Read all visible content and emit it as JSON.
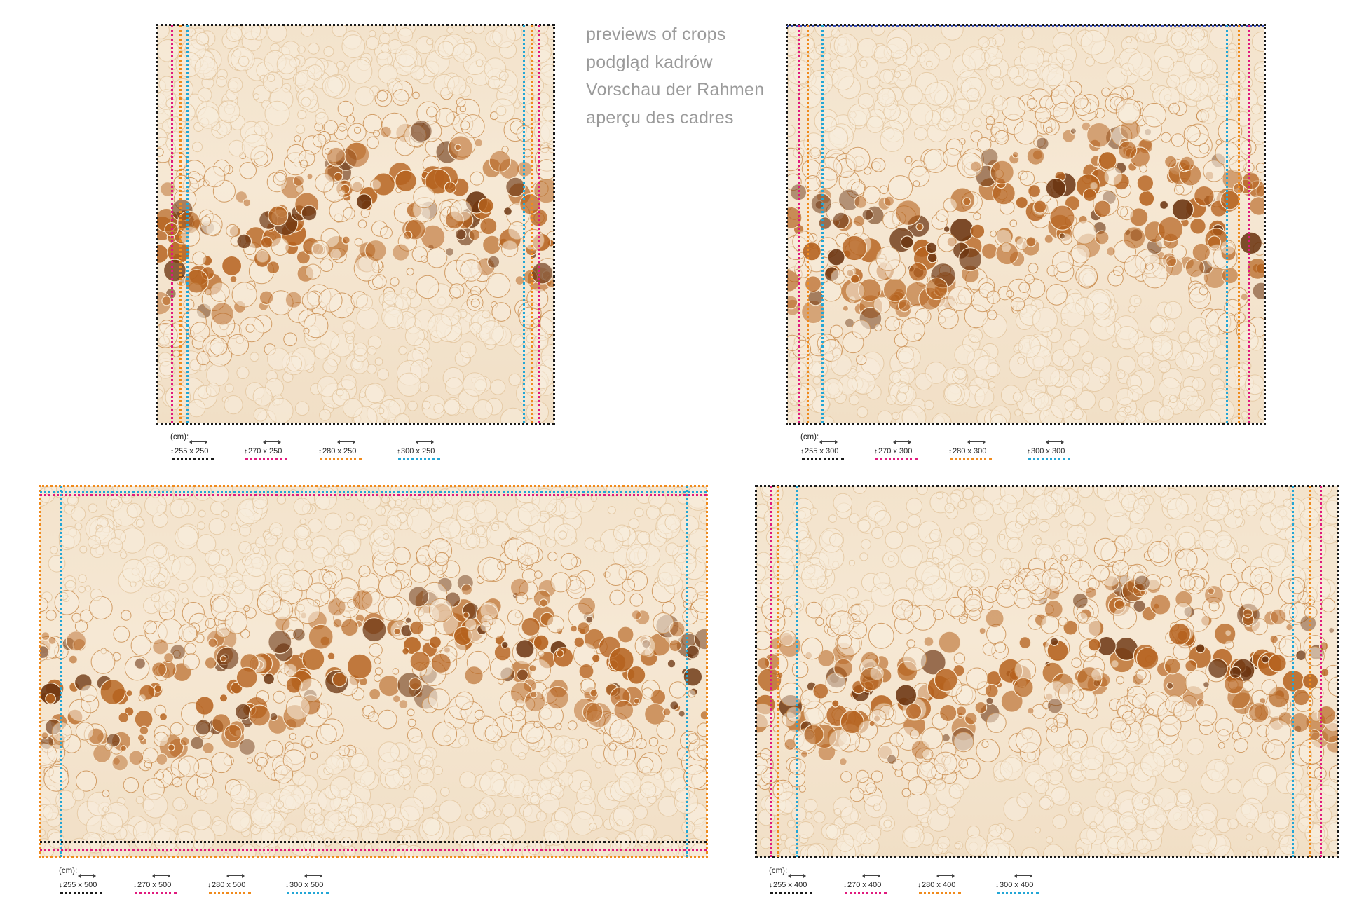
{
  "heading": {
    "lines": [
      "previews of crops",
      "podgląd kadrów",
      "Vorschau der Rahmen",
      "aperçu des cadres"
    ]
  },
  "colors": {
    "black": "#1a1a1a",
    "magenta": "#e0197d",
    "orange": "#f08a1c",
    "cyan": "#22a6d6",
    "art_light": "#f3e3cc",
    "art_brown": "#b5621e",
    "art_dark": "#6b3410"
  },
  "panels": [
    {
      "id": "panel-top-left",
      "unit": "(cm):",
      "sizes": [
        "255 x 250",
        "270 x 250",
        "280 x 250",
        "300 x 250"
      ]
    },
    {
      "id": "panel-top-right",
      "unit": "(cm):",
      "sizes": [
        "255 x 300",
        "270 x 300",
        "280 x 300",
        "300 x 300"
      ]
    },
    {
      "id": "panel-bottom-left",
      "unit": "(cm):",
      "sizes": [
        "255 x 500",
        "270 x 500",
        "280 x 500",
        "300 x 500"
      ]
    },
    {
      "id": "panel-bottom-right",
      "unit": "(cm):",
      "sizes": [
        "255 x 400",
        "270 x 400",
        "280 x 400",
        "300 x 400"
      ]
    }
  ]
}
